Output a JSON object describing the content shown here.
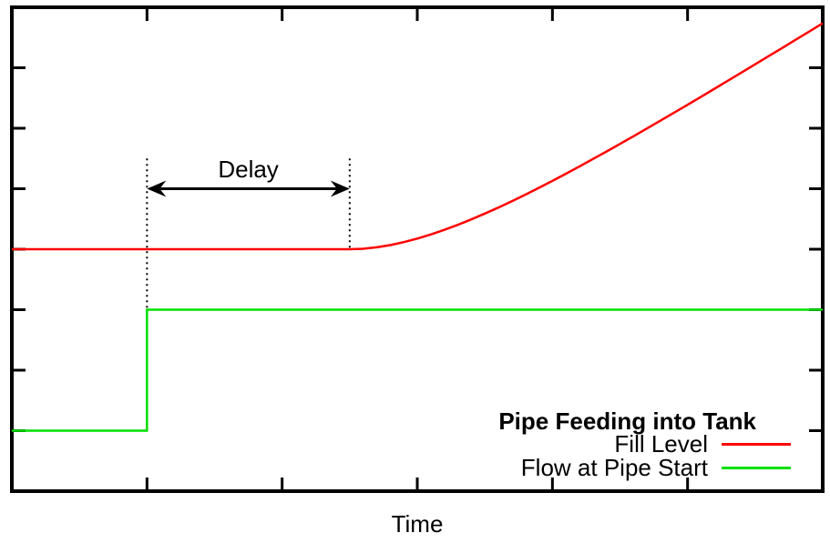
{
  "chart_data": {
    "type": "line",
    "title": "Pipe Feeding into Tank",
    "xlabel": "Time",
    "ylabel": "",
    "xlim": [
      0,
      6
    ],
    "ylim": [
      0,
      8
    ],
    "xticks": [
      1,
      2,
      3,
      4,
      5
    ],
    "yticks": [
      1,
      2,
      3,
      4,
      5,
      6,
      7
    ],
    "tick_numeric_labels": false,
    "grid": false,
    "axis_color": "#000000",
    "background_color": "#ffffff",
    "legend_position": "inside-bottom-right",
    "series": [
      {
        "name": "Fill Level",
        "color": "#ff0000",
        "width": 2.5,
        "points": [
          [
            0,
            4
          ],
          [
            0.25,
            4
          ],
          [
            0.5,
            4
          ],
          [
            0.75,
            4
          ],
          [
            1,
            4
          ],
          [
            1.25,
            4
          ],
          [
            1.5,
            4
          ],
          [
            1.75,
            4
          ],
          [
            2,
            4
          ],
          [
            2.25,
            4
          ],
          [
            2.5,
            4
          ],
          [
            2.6,
            4.008
          ],
          [
            2.7,
            4.032
          ],
          [
            2.8,
            4.068
          ],
          [
            2.9,
            4.117
          ],
          [
            3.0,
            4.176
          ],
          [
            3.1,
            4.244
          ],
          [
            3.2,
            4.32
          ],
          [
            3.3,
            4.403
          ],
          [
            3.4,
            4.493
          ],
          [
            3.5,
            4.589
          ],
          [
            3.6,
            4.689
          ],
          [
            3.7,
            4.794
          ],
          [
            3.8,
            4.903
          ],
          [
            3.9,
            5.015
          ],
          [
            4.0,
            5.13
          ],
          [
            4.1,
            5.248
          ],
          [
            4.2,
            5.368
          ],
          [
            4.3,
            5.491
          ],
          [
            4.4,
            5.615
          ],
          [
            4.5,
            5.741
          ],
          [
            4.6,
            5.868
          ],
          [
            4.7,
            5.997
          ],
          [
            4.8,
            6.126
          ],
          [
            4.9,
            6.257
          ],
          [
            5.0,
            6.388
          ],
          [
            5.1,
            6.521
          ],
          [
            5.2,
            6.654
          ],
          [
            5.3,
            6.788
          ],
          [
            5.4,
            6.922
          ],
          [
            5.5,
            7.057
          ],
          [
            5.6,
            7.192
          ],
          [
            5.7,
            7.327
          ],
          [
            5.8,
            7.463
          ],
          [
            5.9,
            7.599
          ],
          [
            6.0,
            7.735
          ]
        ]
      },
      {
        "name": "Flow at Pipe Start",
        "color": "#00e000",
        "width": 2.5,
        "points": [
          [
            0,
            1
          ],
          [
            1,
            1
          ],
          [
            1,
            3
          ],
          [
            6,
            3
          ]
        ]
      }
    ],
    "annotations": {
      "delay": {
        "label": "Delay",
        "arrow": {
          "x1": 1,
          "x2": 2.5,
          "y": 5,
          "heads": "both",
          "color": "#000000"
        },
        "dotted_lines": [
          {
            "x": 1,
            "y_top": 5.5,
            "y_bottom": 3
          },
          {
            "x": 2.5,
            "y_top": 5.5,
            "y_bottom": 4
          }
        ]
      }
    }
  }
}
